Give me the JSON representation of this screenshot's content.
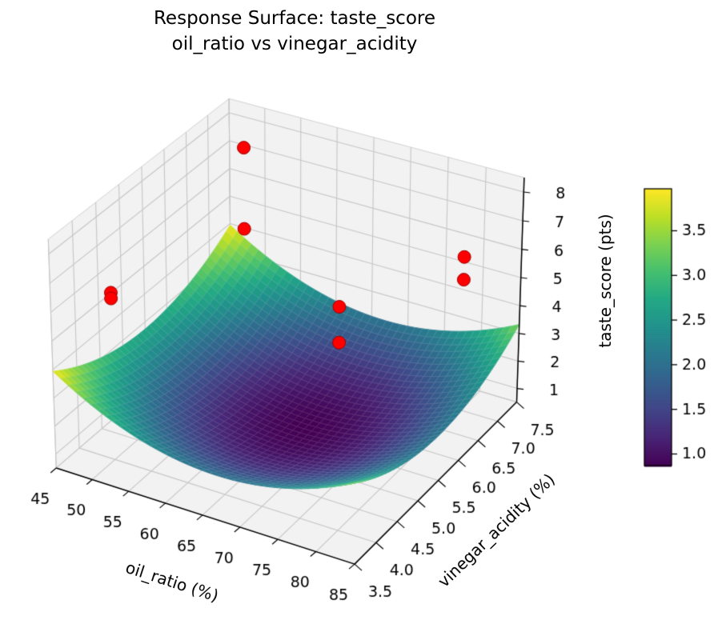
{
  "title": {
    "line1": "Response Surface: taste_score",
    "line2": "oil_ratio vs vinegar_acidity"
  },
  "chart_data": {
    "type": "surface",
    "title": "Response Surface: taste_score\noil_ratio vs vinegar_acidity",
    "xlabel": "oil_ratio (%)",
    "ylabel": "vinegar_acidity (%)",
    "zlabel": "taste_score (pts)",
    "xlim": [
      45,
      85
    ],
    "ylim": [
      3.5,
      7.5
    ],
    "zlim": [
      0.5,
      8.5
    ],
    "x_ticks": [
      45,
      50,
      55,
      60,
      65,
      70,
      75,
      80,
      85
    ],
    "y_ticks": [
      3.5,
      4.0,
      4.5,
      5.0,
      5.5,
      6.0,
      6.5,
      7.0,
      7.5
    ],
    "z_ticks": [
      1,
      2,
      3,
      4,
      5,
      6,
      7,
      8
    ],
    "view": {
      "elev": 30,
      "azim": -60,
      "projection": "perspective"
    },
    "surface": {
      "colormap": "viridis",
      "vmin": 0.87,
      "vmax": 3.97,
      "mesh": [
        40,
        40
      ],
      "model": "taste_score = z_min + A*((oil_ratio-x0)/x_scale)^2 + B*((vinegar_acidity-y0)/y_scale)^2",
      "z_min": 0.87,
      "x0": 67,
      "x_scale": 20,
      "A": 1.55,
      "y0": 5.5,
      "y_scale": 2,
      "B": 1.2
    },
    "scatter": {
      "color": "#ff0000",
      "points": [
        {
          "oil_ratio": 50,
          "vinegar_acidity": 4.0,
          "taste_score": 6.4
        },
        {
          "oil_ratio": 50,
          "vinegar_acidity": 4.0,
          "taste_score": 6.2
        },
        {
          "oil_ratio": 50,
          "vinegar_acidity": 7.0,
          "taste_score": 7.7
        },
        {
          "oil_ratio": 50,
          "vinegar_acidity": 7.0,
          "taste_score": 4.8
        },
        {
          "oil_ratio": 80,
          "vinegar_acidity": 4.0,
          "taste_score": 8.2
        },
        {
          "oil_ratio": 80,
          "vinegar_acidity": 4.0,
          "taste_score": 7.0
        },
        {
          "oil_ratio": 80,
          "vinegar_acidity": 7.0,
          "taste_score": 6.0
        },
        {
          "oil_ratio": 80,
          "vinegar_acidity": 7.0,
          "taste_score": 5.2
        }
      ]
    },
    "colorbar": {
      "vmin": 0.87,
      "vmax": 3.97,
      "ticks": [
        1.0,
        1.5,
        2.0,
        2.5,
        3.0,
        3.5
      ],
      "colormap": "viridis"
    },
    "colors": {
      "background": "#ffffff",
      "pane": "#f2f2f2",
      "pane_edge": "#d2d2d2",
      "grid": "#c6c6c6",
      "axis_line": "#000000",
      "text": "#000000",
      "scatter_edge": "#9b0000",
      "mesh_line": "rgba(255,255,255,0.25)"
    }
  }
}
